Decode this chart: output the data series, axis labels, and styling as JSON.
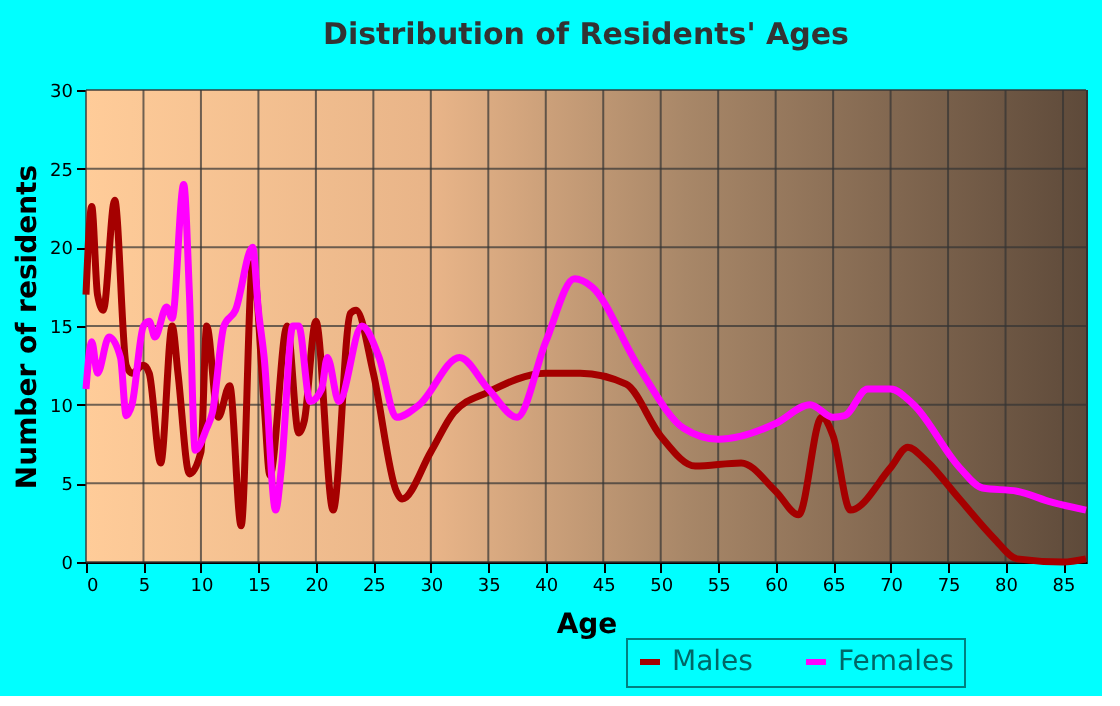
{
  "chart_data": {
    "type": "line",
    "title": "Distribution of Residents' Ages",
    "xlabel": "Age",
    "ylabel": "Number of residents",
    "xlim": [
      0,
      87
    ],
    "xticks": [
      0,
      5,
      10,
      15,
      20,
      25,
      30,
      35,
      40,
      45,
      50,
      55,
      60,
      65,
      70,
      75,
      80,
      85
    ],
    "ylim": [
      0,
      30
    ],
    "yticks": [
      0,
      5,
      10,
      15,
      20,
      25,
      30
    ],
    "grid": true,
    "legend": "bottom right",
    "marker": "none",
    "line_style": "solid",
    "series": [
      {
        "name": "Males",
        "color": "#a50000",
        "x": [
          0,
          0.5,
          1,
          1.5,
          2.5,
          3.5,
          4,
          5,
          5.5,
          6.5,
          7.5,
          8,
          9,
          10,
          10.5,
          11.5,
          12.5,
          13.5,
          14.5,
          15.5,
          16,
          17.5,
          18.5,
          19,
          20,
          21.5,
          23,
          23.5,
          25,
          27,
          27.5,
          30,
          32,
          35,
          40,
          43,
          47,
          50,
          53,
          57,
          60,
          62,
          64,
          65,
          66.5,
          70,
          71.5,
          73,
          76,
          79,
          81,
          85,
          87
        ],
        "values": [
          17,
          22.6,
          17,
          16,
          23,
          12.5,
          12,
          12.5,
          12,
          6.3,
          15,
          12,
          5.6,
          7,
          15,
          9.2,
          11.2,
          2.3,
          19,
          10,
          5.5,
          15,
          8.2,
          9,
          15.3,
          3.3,
          15.8,
          16,
          12,
          4.5,
          4,
          7,
          9.5,
          10.8,
          12,
          12,
          11.3,
          8,
          6.1,
          6.3,
          4.5,
          3,
          9.2,
          8,
          3.3,
          6,
          7.3,
          6.5,
          4,
          1.5,
          0.2,
          0,
          0.2
        ]
      },
      {
        "name": "Females",
        "color": "#ff00ff",
        "x": [
          0,
          0.5,
          1,
          2,
          3,
          3.5,
          4,
          5,
          5.5,
          6,
          7,
          7.5,
          8.5,
          9,
          9.5,
          10.5,
          11,
          12,
          13,
          14.5,
          15,
          15.5,
          16.5,
          17,
          18,
          18.5,
          19.5,
          20.5,
          21,
          22,
          24,
          25.5,
          27,
          29,
          32.5,
          35,
          37.5,
          40,
          42.5,
          44,
          48,
          52,
          55,
          57,
          60,
          63,
          65,
          66,
          68,
          70,
          72,
          76,
          78,
          81,
          84,
          87
        ],
        "values": [
          11,
          14,
          12,
          14.3,
          13,
          9.3,
          10,
          15,
          15.3,
          14.3,
          16.2,
          15.5,
          24,
          17,
          7.1,
          8.5,
          9.5,
          15,
          16,
          20,
          16,
          13,
          3.3,
          6,
          15,
          15,
          10.2,
          11,
          13,
          10.2,
          15,
          13,
          9.2,
          10,
          13,
          11,
          9.2,
          14,
          18,
          17.5,
          12.5,
          8.5,
          7.8,
          8,
          8.8,
          10,
          9.2,
          9.3,
          11,
          11,
          10,
          6,
          4.7,
          4.5,
          3.8,
          3.3
        ]
      }
    ]
  }
}
